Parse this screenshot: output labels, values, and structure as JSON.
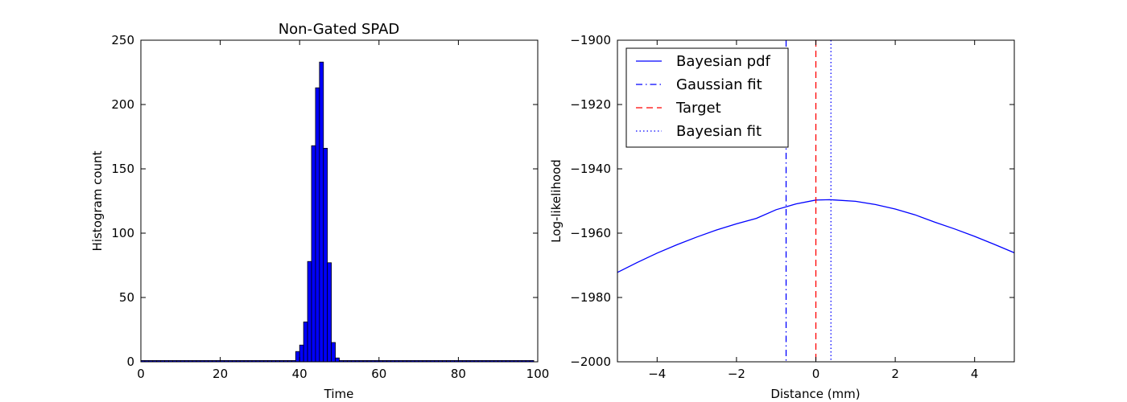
{
  "chart_data": [
    {
      "type": "bar",
      "title": "Non-Gated SPAD",
      "xlabel": "Time",
      "ylabel": "Histogram count",
      "xlim": [
        0,
        100
      ],
      "ylim": [
        0,
        250
      ],
      "xticks": [
        0,
        20,
        40,
        60,
        80,
        100
      ],
      "yticks": [
        0,
        50,
        100,
        150,
        200,
        250
      ],
      "bar_color": "#0000ff",
      "bin_width": 1,
      "bins": [
        {
          "x": 0,
          "count": 1
        },
        {
          "x": 1,
          "count": 1
        },
        {
          "x": 2,
          "count": 1
        },
        {
          "x": 3,
          "count": 1
        },
        {
          "x": 4,
          "count": 1
        },
        {
          "x": 5,
          "count": 1
        },
        {
          "x": 6,
          "count": 1
        },
        {
          "x": 7,
          "count": 1
        },
        {
          "x": 8,
          "count": 1
        },
        {
          "x": 9,
          "count": 1
        },
        {
          "x": 10,
          "count": 1
        },
        {
          "x": 11,
          "count": 1
        },
        {
          "x": 12,
          "count": 1
        },
        {
          "x": 13,
          "count": 1
        },
        {
          "x": 14,
          "count": 1
        },
        {
          "x": 15,
          "count": 1
        },
        {
          "x": 16,
          "count": 1
        },
        {
          "x": 17,
          "count": 1
        },
        {
          "x": 18,
          "count": 1
        },
        {
          "x": 19,
          "count": 1
        },
        {
          "x": 20,
          "count": 1
        },
        {
          "x": 21,
          "count": 1
        },
        {
          "x": 22,
          "count": 1
        },
        {
          "x": 23,
          "count": 1
        },
        {
          "x": 24,
          "count": 1
        },
        {
          "x": 25,
          "count": 1
        },
        {
          "x": 26,
          "count": 1
        },
        {
          "x": 27,
          "count": 1
        },
        {
          "x": 28,
          "count": 1
        },
        {
          "x": 29,
          "count": 1
        },
        {
          "x": 30,
          "count": 1
        },
        {
          "x": 31,
          "count": 1
        },
        {
          "x": 32,
          "count": 1
        },
        {
          "x": 33,
          "count": 1
        },
        {
          "x": 34,
          "count": 1
        },
        {
          "x": 35,
          "count": 1
        },
        {
          "x": 36,
          "count": 1
        },
        {
          "x": 37,
          "count": 1
        },
        {
          "x": 38,
          "count": 1
        },
        {
          "x": 39,
          "count": 8
        },
        {
          "x": 40,
          "count": 13
        },
        {
          "x": 41,
          "count": 31
        },
        {
          "x": 42,
          "count": 78
        },
        {
          "x": 43,
          "count": 168
        },
        {
          "x": 44,
          "count": 213
        },
        {
          "x": 45,
          "count": 233
        },
        {
          "x": 46,
          "count": 166
        },
        {
          "x": 47,
          "count": 77
        },
        {
          "x": 48,
          "count": 15
        },
        {
          "x": 49,
          "count": 3
        },
        {
          "x": 50,
          "count": 1
        },
        {
          "x": 51,
          "count": 1
        },
        {
          "x": 52,
          "count": 1
        },
        {
          "x": 53,
          "count": 1
        },
        {
          "x": 54,
          "count": 1
        },
        {
          "x": 55,
          "count": 1
        },
        {
          "x": 56,
          "count": 1
        },
        {
          "x": 57,
          "count": 1
        },
        {
          "x": 58,
          "count": 1
        },
        {
          "x": 59,
          "count": 1
        },
        {
          "x": 60,
          "count": 1
        },
        {
          "x": 61,
          "count": 1
        },
        {
          "x": 62,
          "count": 1
        },
        {
          "x": 63,
          "count": 1
        },
        {
          "x": 64,
          "count": 1
        },
        {
          "x": 65,
          "count": 1
        },
        {
          "x": 66,
          "count": 1
        },
        {
          "x": 67,
          "count": 1
        },
        {
          "x": 68,
          "count": 1
        },
        {
          "x": 69,
          "count": 1
        },
        {
          "x": 70,
          "count": 1
        },
        {
          "x": 71,
          "count": 1
        },
        {
          "x": 72,
          "count": 1
        },
        {
          "x": 73,
          "count": 1
        },
        {
          "x": 74,
          "count": 1
        },
        {
          "x": 75,
          "count": 1
        },
        {
          "x": 76,
          "count": 1
        },
        {
          "x": 77,
          "count": 1
        },
        {
          "x": 78,
          "count": 1
        },
        {
          "x": 79,
          "count": 1
        },
        {
          "x": 80,
          "count": 1
        },
        {
          "x": 81,
          "count": 1
        },
        {
          "x": 82,
          "count": 1
        },
        {
          "x": 83,
          "count": 1
        },
        {
          "x": 84,
          "count": 1
        },
        {
          "x": 85,
          "count": 1
        },
        {
          "x": 86,
          "count": 1
        },
        {
          "x": 87,
          "count": 1
        },
        {
          "x": 88,
          "count": 1
        },
        {
          "x": 89,
          "count": 1
        },
        {
          "x": 90,
          "count": 1
        },
        {
          "x": 91,
          "count": 1
        },
        {
          "x": 92,
          "count": 1
        },
        {
          "x": 93,
          "count": 1
        },
        {
          "x": 94,
          "count": 1
        },
        {
          "x": 95,
          "count": 1
        },
        {
          "x": 96,
          "count": 1
        },
        {
          "x": 97,
          "count": 1
        },
        {
          "x": 98,
          "count": 1
        }
      ]
    },
    {
      "type": "line",
      "title": "",
      "xlabel": "Distance (mm)",
      "ylabel": "Log-likelihood",
      "xlim": [
        -5,
        5
      ],
      "ylim": [
        -2000,
        -1900
      ],
      "xticks": [
        -4,
        -2,
        0,
        2,
        4
      ],
      "yticks": [
        -2000,
        -1980,
        -1960,
        -1940,
        -1920,
        -1900
      ],
      "tick_minus": "−",
      "legend_position": "upper-left",
      "series": [
        {
          "name": "Bayesian pdf",
          "style": "solid",
          "color": "#0000ff",
          "x": [
            -5,
            -4.5,
            -4,
            -3.5,
            -3,
            -2.5,
            -2,
            -1.5,
            -1,
            -0.5,
            0,
            0.35,
            0.5,
            1,
            1.5,
            2,
            2.5,
            3,
            3.5,
            4,
            4.5,
            5
          ],
          "y": [
            -1972.2,
            -1969.1,
            -1966.2,
            -1963.6,
            -1961.2,
            -1959.0,
            -1957.1,
            -1955.4,
            -1952.7,
            -1950.9,
            -1949.7,
            -1949.6,
            -1949.7,
            -1950.1,
            -1951.1,
            -1952.5,
            -1954.3,
            -1956.6,
            -1958.7,
            -1961.0,
            -1963.5,
            -1966.1
          ]
        },
        {
          "name": "Gaussian fit",
          "style": "dashdot",
          "color": "#0000ff",
          "vline": -0.75
        },
        {
          "name": "Target",
          "style": "dashed",
          "color": "#ff0000",
          "vline": 0
        },
        {
          "name": "Bayesian fit",
          "style": "dotted",
          "color": "#0000ff",
          "vline": 0.38
        }
      ]
    }
  ]
}
